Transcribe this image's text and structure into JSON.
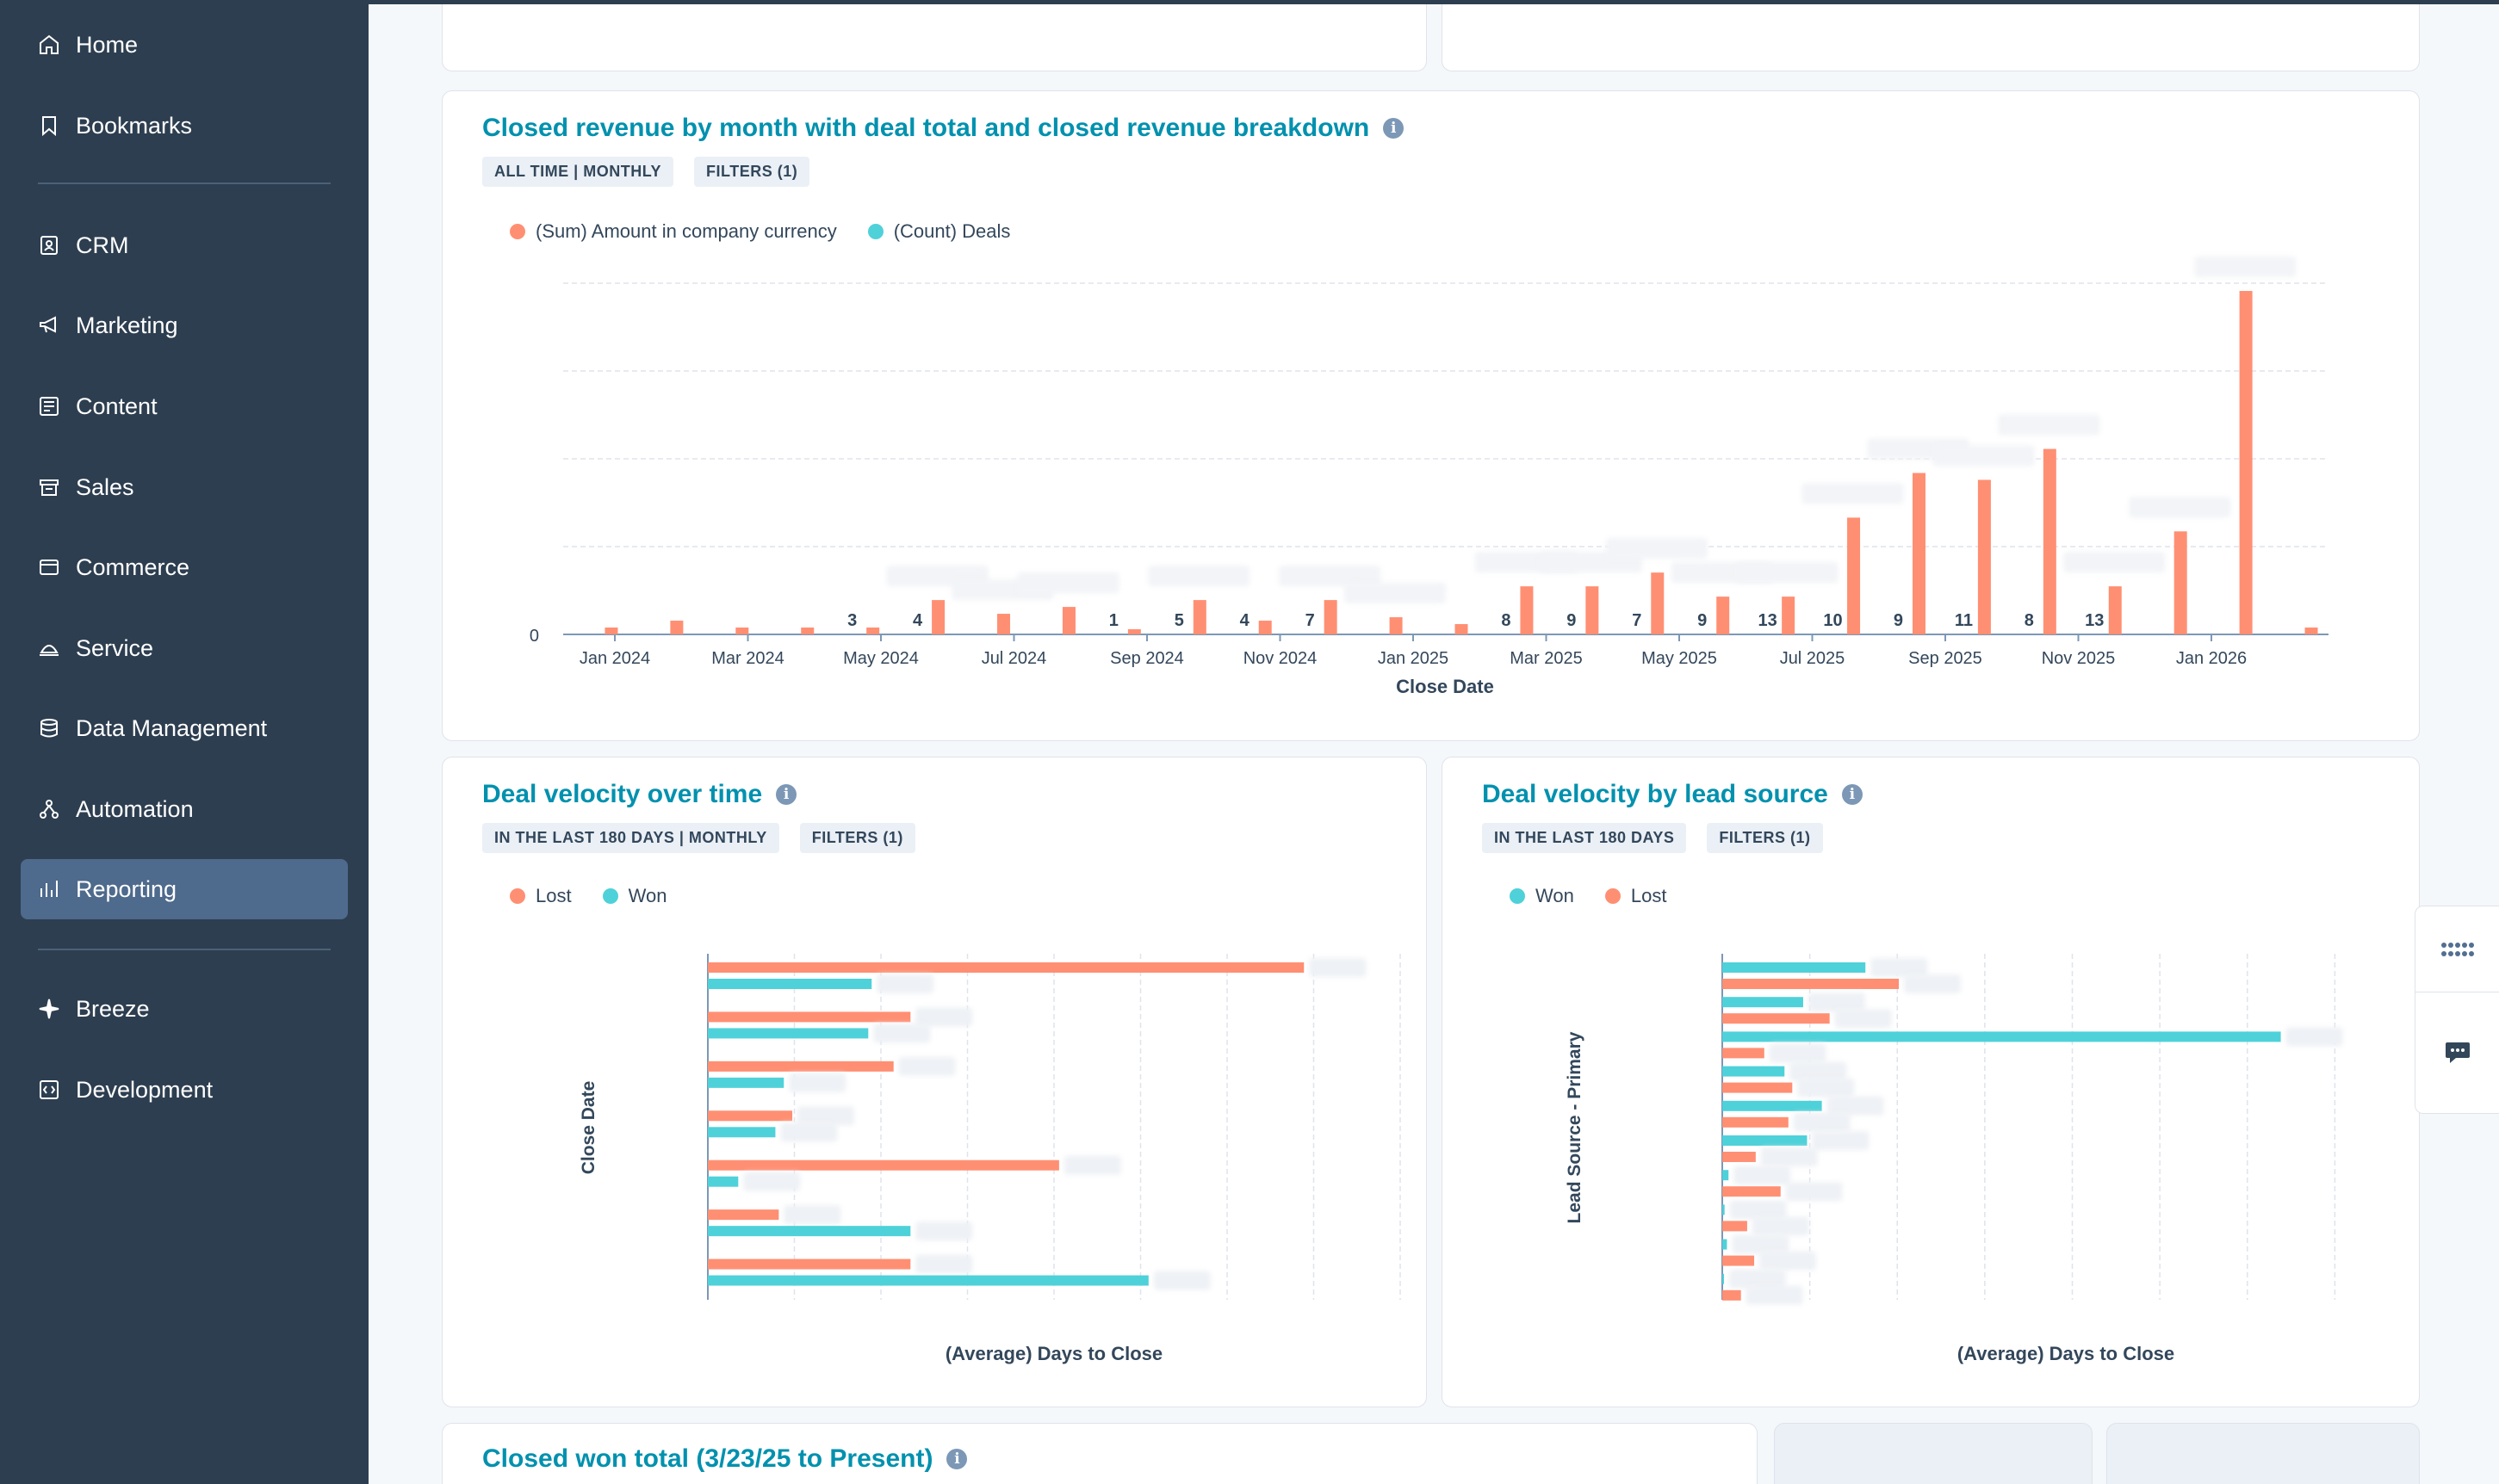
{
  "sidebar": {
    "items": [
      {
        "label": "Home",
        "icon": "home-icon"
      },
      {
        "label": "Bookmarks",
        "icon": "bookmark-icon"
      },
      {
        "label": "CRM",
        "icon": "contacts-icon"
      },
      {
        "label": "Marketing",
        "icon": "megaphone-icon"
      },
      {
        "label": "Content",
        "icon": "content-icon"
      },
      {
        "label": "Sales",
        "icon": "sales-icon"
      },
      {
        "label": "Commerce",
        "icon": "commerce-icon"
      },
      {
        "label": "Service",
        "icon": "service-icon"
      },
      {
        "label": "Data Management",
        "icon": "database-icon"
      },
      {
        "label": "Automation",
        "icon": "automation-icon"
      },
      {
        "label": "Reporting",
        "icon": "bar-chart-icon"
      },
      {
        "label": "Breeze",
        "icon": "sparkle-icon"
      },
      {
        "label": "Development",
        "icon": "code-icon"
      }
    ],
    "active": "Reporting"
  },
  "colors": {
    "salmon": "#ff8f73",
    "teal": "#4fd1d9",
    "title": "#0091ae",
    "sidebar": "#2d3e50"
  },
  "revenue_card": {
    "title": "Closed revenue by month with deal total and closed revenue breakdown",
    "chips": [
      "ALL TIME | MONTHLY",
      "FILTERS (1)"
    ],
    "legend": [
      "(Sum) Amount in company currency",
      "(Count) Deals"
    ]
  },
  "velocity_time_card": {
    "title": "Deal velocity over time",
    "chips": [
      "IN THE LAST 180 DAYS | MONTHLY",
      "FILTERS (1)"
    ],
    "legend": [
      "Lost",
      "Won"
    ]
  },
  "velocity_source_card": {
    "title": "Deal velocity by lead source",
    "chips": [
      "IN THE LAST 180 DAYS",
      "FILTERS (1)"
    ],
    "legend": [
      "Won",
      "Lost"
    ]
  },
  "closed_won_card": {
    "title": "Closed won total (3/23/25 to Present)"
  },
  "chart_data": [
    {
      "type": "bar",
      "x_ticks": [
        "Jan 2024",
        "Mar 2024",
        "May 2024",
        "Jul 2024",
        "Sep 2024",
        "Nov 2024",
        "Jan 2025",
        "Mar 2025",
        "May 2025",
        "Jul 2025",
        "Sep 2025",
        "Nov 2025",
        "Jan 2026"
      ],
      "xlabel": "Close Date",
      "y_tick": "0",
      "series": [
        {
          "name": "(Sum) Amount in company currency",
          "values": [
            0.02,
            0.04,
            0.02,
            0.02,
            0.02,
            0.1,
            0.06,
            0.08,
            0.01,
            0.1,
            0.04,
            0.1,
            0.05,
            0.03,
            0.14,
            0.14,
            0.18,
            0.11,
            0.11,
            0.34,
            0.47,
            0.45,
            0.54,
            0.14,
            0.3,
            1.0,
            0.02
          ]
        },
        {
          "name": "(Count) Deals",
          "labels": [
            "3",
            "4",
            "1",
            "5",
            "4",
            "7",
            "8",
            "9",
            "7",
            "9",
            "13",
            "10",
            "9",
            "11",
            "8",
            "13"
          ]
        }
      ]
    },
    {
      "type": "bar",
      "orientation": "horizontal",
      "xlabel": "(Average) Days to Close",
      "ylabel": "Close Date",
      "series": [
        {
          "name": "Lost",
          "values": [
            353,
            120,
            110,
            50,
            208,
            42,
            120
          ]
        },
        {
          "name": "Won",
          "values": [
            97,
            95,
            45,
            40,
            18,
            120,
            261
          ]
        }
      ]
    },
    {
      "type": "bar",
      "orientation": "horizontal",
      "xlabel": "(Average) Days to Close",
      "ylabel": "Lead Source - Primary",
      "series": [
        {
          "name": "Won",
          "values": [
            184,
            104,
            718,
            80,
            128,
            109,
            8,
            3,
            6,
            1
          ]
        },
        {
          "name": "Lost",
          "values": [
            227,
            138,
            54,
            90,
            85,
            43,
            75,
            32,
            41,
            24
          ]
        }
      ]
    }
  ]
}
